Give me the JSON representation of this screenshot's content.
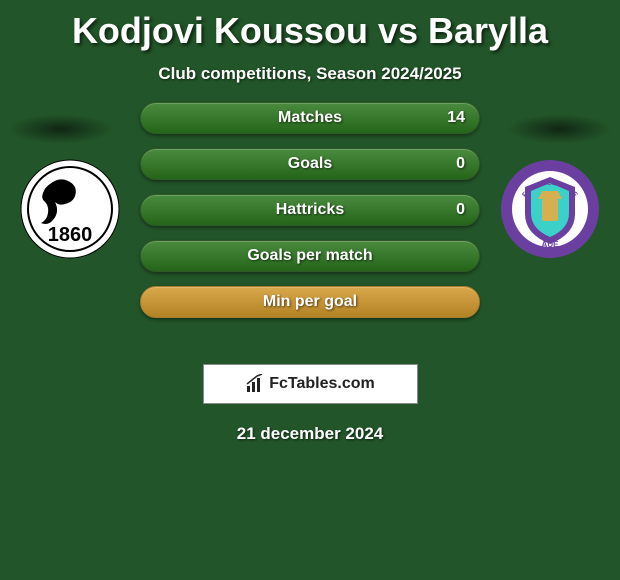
{
  "title": "Kodjovi Koussou vs Barylla",
  "subtitle": "Club competitions, Season 2024/2025",
  "footer_brand": "FcTables.com",
  "footer_date": "21 december 2024",
  "colors": {
    "background": "#225529",
    "bar_green": "#4a8b3f",
    "bar_green_border": "#2f5a27",
    "bar_orange": "#d9a84a",
    "bar_orange_border": "#a87c2e",
    "footer_bg": "#ffffff",
    "footer_text": "#222222"
  },
  "crest_left": {
    "name": "1860",
    "bg": "#ffffff",
    "text_color": "#000000",
    "year": "1860"
  },
  "crest_right": {
    "name": "FC Erzgebirge Aue",
    "ring": "#6b3fa0",
    "inner": "#ffffff",
    "shield_outer": "#6b3fa0",
    "shield_inner": "#3bd1c9"
  },
  "bars": [
    {
      "label": "Matches",
      "value_right": "14",
      "color_key": "green"
    },
    {
      "label": "Goals",
      "value_right": "0",
      "color_key": "green"
    },
    {
      "label": "Hattricks",
      "value_right": "0",
      "color_key": "green"
    },
    {
      "label": "Goals per match",
      "value_right": "",
      "color_key": "green"
    },
    {
      "label": "Min per goal",
      "value_right": "",
      "color_key": "orange"
    }
  ]
}
